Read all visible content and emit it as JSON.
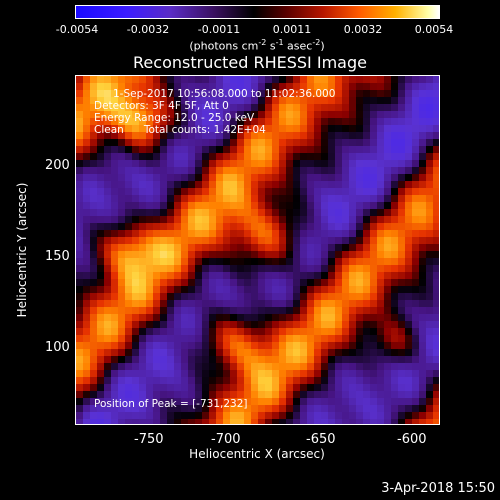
{
  "colorbar": {
    "ticks": [
      "-0.0054",
      "-0.0032",
      "-0.0011",
      "0.0011",
      "0.0032",
      "0.0054"
    ],
    "units_text": "(photons cm",
    "units_exp1": "-2",
    "units_mid": " s",
    "units_exp2": "-1",
    "units_mid2": " asec",
    "units_exp3": "-2",
    "units_end": ")"
  },
  "title": "Reconstructed RHESSI Image",
  "info": {
    "line1": "1-Sep-2017 10:56:08.000 to 11:02:36.000",
    "line2": "Detectors: 3F 4F 5F, Att 0",
    "line3": "Energy Range: 12.0 - 25.0 keV",
    "line4": "Clean      Total counts: 1.42E+04",
    "peak": "Position of Peak = [-731,232]"
  },
  "axes": {
    "xlabel": "Heliocentric X (arcsec)",
    "ylabel": "Heliocentric Y (arcsec)",
    "xticks": [
      "-750",
      "-700",
      "-650",
      "-600"
    ],
    "yticks": [
      "200",
      "150",
      "100"
    ]
  },
  "timestamp": "3-Apr-2018 15:50",
  "colors": {
    "background": "#000000",
    "neg_strong": "#3b1cff",
    "neg_mid": "#6a30c0",
    "zero": "#000000",
    "pos_mid": "#d82800",
    "pos_high": "#ffb000",
    "pos_peak": "#ffffff"
  }
}
